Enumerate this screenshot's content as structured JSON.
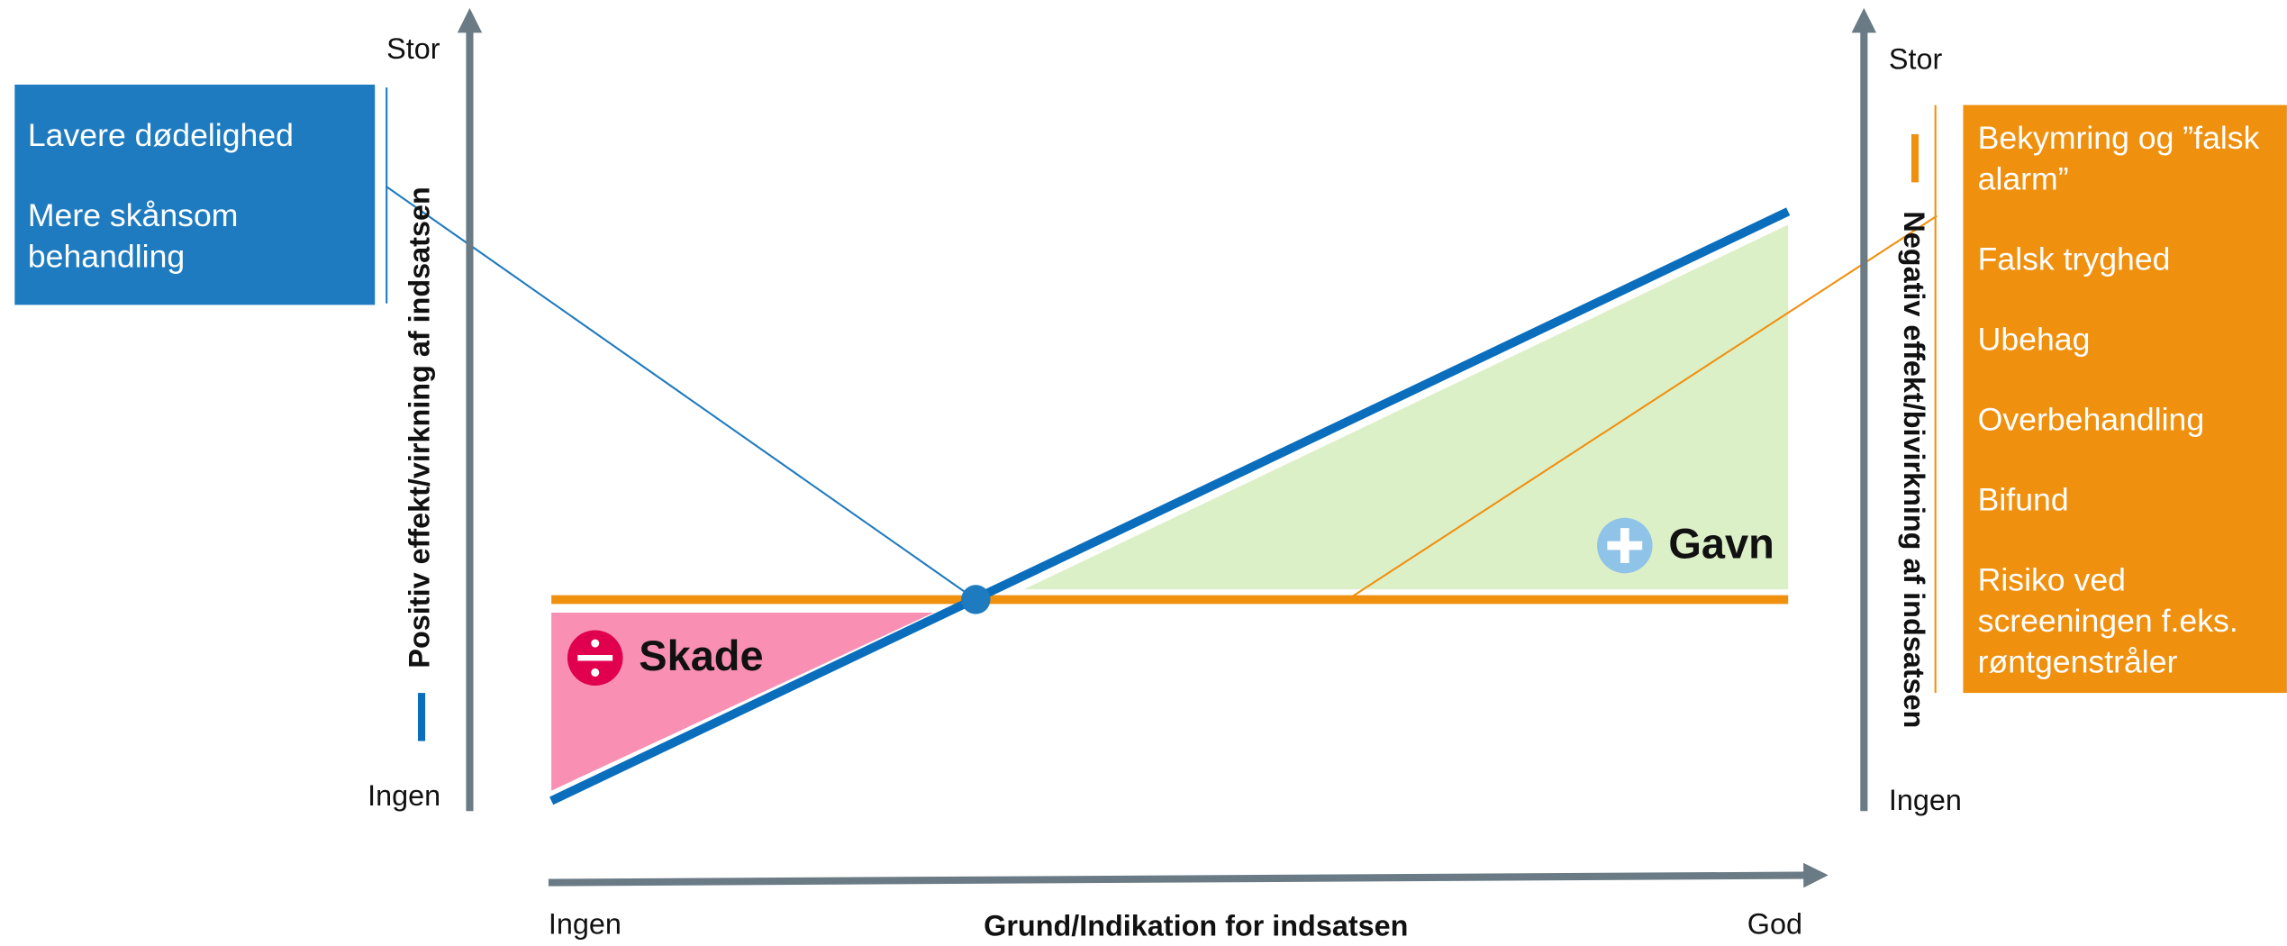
{
  "left_axis": {
    "top": "Stor",
    "bottom": "Ingen",
    "label": "Positiv effekt/virkning af indsatsen"
  },
  "right_axis": {
    "top": "Stor",
    "bottom": "Ingen",
    "label": "Negativ effekt/bivirkning af indsatsen"
  },
  "x_axis": {
    "left": "Ingen",
    "label": "Grund/Indikation for indsatsen",
    "right": "God"
  },
  "left_box": {
    "items": [
      "Lavere dødelighed",
      "Mere skånsom behandling"
    ]
  },
  "right_box": {
    "items": [
      "Bekymring og ”falsk alarm”",
      "Falsk tryghed",
      "Ubehag",
      "Overbehandling",
      "Bifund",
      "Risiko ved screeningen f.eks. røntgenstråler"
    ]
  },
  "regions": {
    "harm": "Skade",
    "benefit": "Gavn"
  }
}
